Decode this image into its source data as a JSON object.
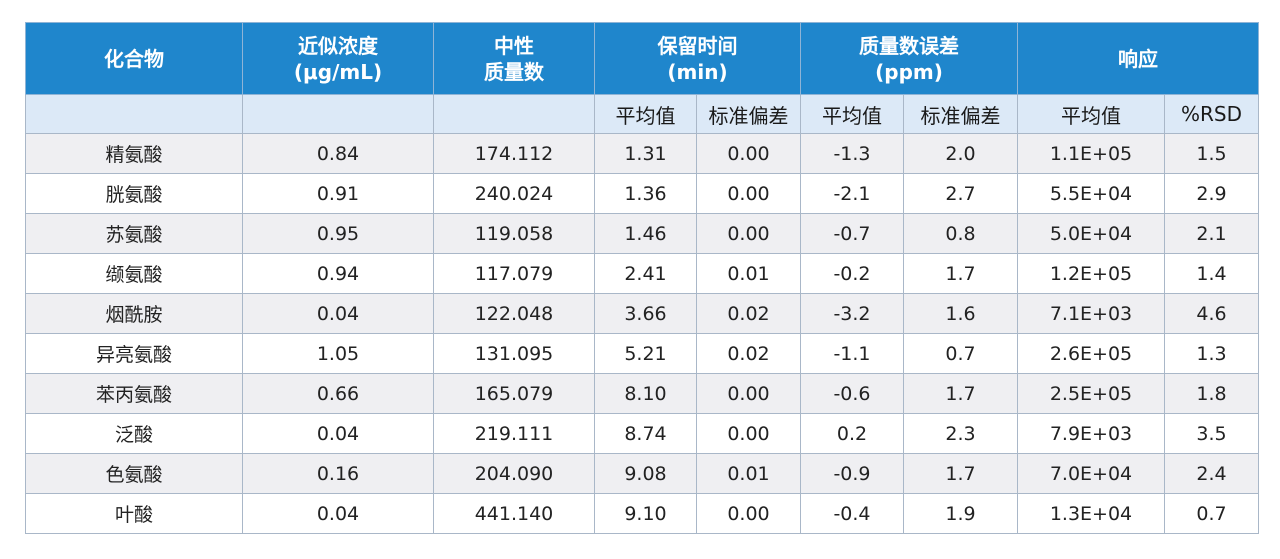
{
  "headers": {
    "compound": "化合物",
    "conc_line1": "近似浓度",
    "conc_line2": "(μg/mL)",
    "mass_line1": "中性",
    "mass_line2": "质量数",
    "rt_line1": "保留时间",
    "rt_line2": "(min)",
    "err_line1": "质量数误差",
    "err_line2": "(ppm)",
    "resp": "响应"
  },
  "subheaders": {
    "rt_mean": "平均值",
    "rt_sd": "标准偏差",
    "err_mean": "平均值",
    "err_sd": "标准偏差",
    "resp_mean": "平均值",
    "resp_rsd": "%RSD"
  },
  "rows": [
    {
      "name": "精氨酸",
      "conc": "0.84",
      "mass": "174.112",
      "rt_mean": "1.31",
      "rt_sd": "0.00",
      "err_mean": "-1.3",
      "err_sd": "2.0",
      "resp_mean": "1.1E+05",
      "resp_rsd": "1.5"
    },
    {
      "name": "胱氨酸",
      "conc": "0.91",
      "mass": "240.024",
      "rt_mean": "1.36",
      "rt_sd": "0.00",
      "err_mean": "-2.1",
      "err_sd": "2.7",
      "resp_mean": "5.5E+04",
      "resp_rsd": "2.9"
    },
    {
      "name": "苏氨酸",
      "conc": "0.95",
      "mass": "119.058",
      "rt_mean": "1.46",
      "rt_sd": "0.00",
      "err_mean": "-0.7",
      "err_sd": "0.8",
      "resp_mean": "5.0E+04",
      "resp_rsd": "2.1"
    },
    {
      "name": "缬氨酸",
      "conc": "0.94",
      "mass": "117.079",
      "rt_mean": "2.41",
      "rt_sd": "0.01",
      "err_mean": "-0.2",
      "err_sd": "1.7",
      "resp_mean": "1.2E+05",
      "resp_rsd": "1.4"
    },
    {
      "name": "烟酰胺",
      "conc": "0.04",
      "mass": "122.048",
      "rt_mean": "3.66",
      "rt_sd": "0.02",
      "err_mean": "-3.2",
      "err_sd": "1.6",
      "resp_mean": "7.1E+03",
      "resp_rsd": "4.6"
    },
    {
      "name": "异亮氨酸",
      "conc": "1.05",
      "mass": "131.095",
      "rt_mean": "5.21",
      "rt_sd": "0.02",
      "err_mean": "-1.1",
      "err_sd": "0.7",
      "resp_mean": "2.6E+05",
      "resp_rsd": "1.3"
    },
    {
      "name": "苯丙氨酸",
      "conc": "0.66",
      "mass": "165.079",
      "rt_mean": "8.10",
      "rt_sd": "0.00",
      "err_mean": "-0.6",
      "err_sd": "1.7",
      "resp_mean": "2.5E+05",
      "resp_rsd": "1.8"
    },
    {
      "name": "泛酸",
      "conc": "0.04",
      "mass": "219.111",
      "rt_mean": "8.74",
      "rt_sd": "0.00",
      "err_mean": "0.2",
      "err_sd": "2.3",
      "resp_mean": "7.9E+03",
      "resp_rsd": "3.5"
    },
    {
      "name": "色氨酸",
      "conc": "0.16",
      "mass": "204.090",
      "rt_mean": "9.08",
      "rt_sd": "0.01",
      "err_mean": "-0.9",
      "err_sd": "1.7",
      "resp_mean": "7.0E+04",
      "resp_rsd": "2.4"
    },
    {
      "name": "叶酸",
      "conc": "0.04",
      "mass": "441.140",
      "rt_mean": "9.10",
      "rt_sd": "0.00",
      "err_mean": "-0.4",
      "err_sd": "1.9",
      "resp_mean": "1.3E+04",
      "resp_rsd": "0.7"
    }
  ]
}
